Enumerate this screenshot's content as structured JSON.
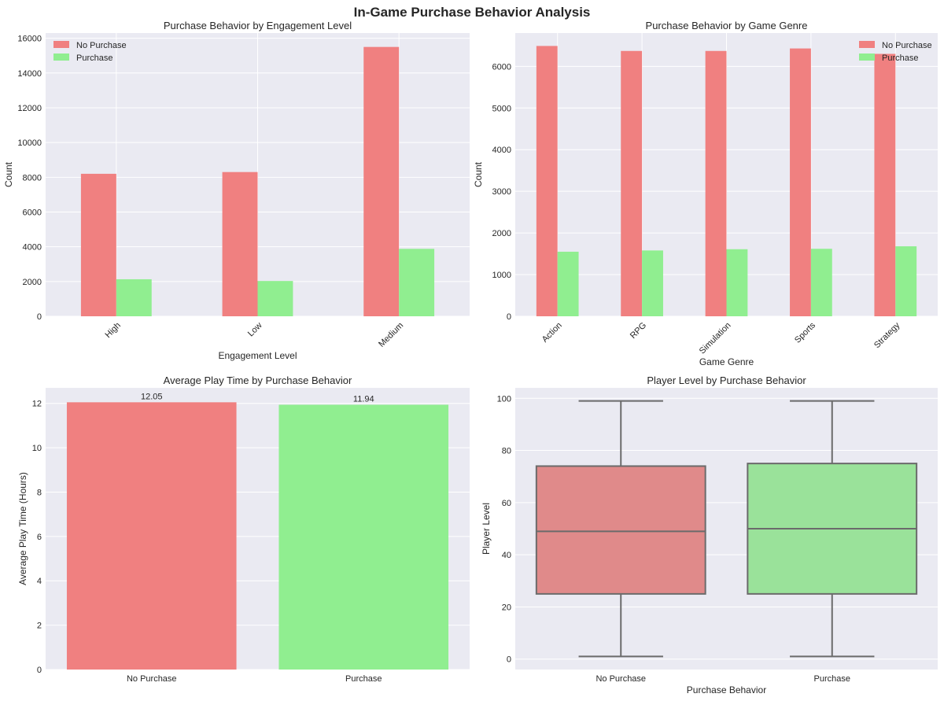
{
  "figure": {
    "title": "In-Game Purchase Behavior Analysis"
  },
  "colors": {
    "no_purchase": "#f08080",
    "purchase": "#90ee90",
    "box_no_purchase": "#e08a8a",
    "box_purchase": "#9ae29a",
    "panel_bg": "#eaeaf2",
    "grid": "#ffffff",
    "box_line": "#6b6b6b"
  },
  "chart_data": [
    {
      "id": "engagement",
      "type": "bar",
      "title": "Purchase Behavior by Engagement Level",
      "xlabel": "Engagement Level",
      "ylabel": "Count",
      "categories": [
        "High",
        "Low",
        "Medium"
      ],
      "series": [
        {
          "name": "No Purchase",
          "values": [
            8200,
            8300,
            15500
          ]
        },
        {
          "name": "Purchase",
          "values": [
            2130,
            2030,
            3880
          ]
        }
      ],
      "ylim": [
        0,
        16300
      ],
      "yticks": [
        0,
        2000,
        4000,
        6000,
        8000,
        10000,
        12000,
        14000,
        16000
      ],
      "legend": "top-left",
      "grid": true
    },
    {
      "id": "genre",
      "type": "bar",
      "title": "Purchase Behavior by Game Genre",
      "xlabel": "Game Genre",
      "ylabel": "Count",
      "categories": [
        "Action",
        "RPG",
        "Simulation",
        "Sports",
        "Strategy"
      ],
      "series": [
        {
          "name": "No Purchase",
          "values": [
            6490,
            6370,
            6370,
            6430,
            6300
          ]
        },
        {
          "name": "Purchase",
          "values": [
            1550,
            1580,
            1610,
            1620,
            1680
          ]
        }
      ],
      "ylim": [
        0,
        6800
      ],
      "yticks": [
        0,
        1000,
        2000,
        3000,
        4000,
        5000,
        6000
      ],
      "legend": "top-right",
      "grid": true
    },
    {
      "id": "playtime",
      "type": "bar",
      "title": "Average Play Time by Purchase Behavior",
      "xlabel": "",
      "ylabel": "Average Play Time (Hours)",
      "categories": [
        "No Purchase",
        "Purchase"
      ],
      "values": [
        12.05,
        11.94
      ],
      "data_labels": [
        "12.05",
        "11.94"
      ],
      "ylim": [
        0,
        12.7
      ],
      "yticks": [
        0,
        2,
        4,
        6,
        8,
        10,
        12
      ],
      "grid": true
    },
    {
      "id": "level",
      "type": "box",
      "title": "Player Level by Purchase Behavior",
      "xlabel": "Purchase Behavior",
      "ylabel": "Player Level",
      "categories": [
        "No Purchase",
        "Purchase"
      ],
      "boxes": [
        {
          "min": 1,
          "q1": 25,
          "median": 49,
          "q3": 74,
          "max": 99
        },
        {
          "min": 1,
          "q1": 25,
          "median": 50,
          "q3": 75,
          "max": 99
        }
      ],
      "ylim": [
        -4,
        104
      ],
      "yticks": [
        0,
        20,
        40,
        60,
        80,
        100
      ],
      "grid": true
    }
  ]
}
